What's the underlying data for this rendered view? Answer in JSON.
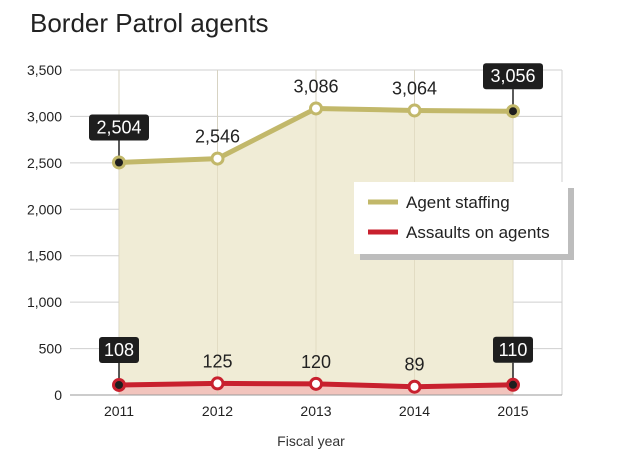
{
  "chart_data": {
    "type": "line",
    "title": "Border Patrol agents",
    "xlabel": "Fiscal year",
    "ylabel": "",
    "categories": [
      "2011",
      "2012",
      "2013",
      "2014",
      "2015"
    ],
    "ylim": [
      0,
      3500
    ],
    "yticks": [
      0,
      500,
      1000,
      1500,
      2000,
      2500,
      3000,
      3500
    ],
    "ytick_labels": [
      "0",
      "500",
      "1,000",
      "1,500",
      "2,000",
      "2,500",
      "3,000",
      "3,500"
    ],
    "grid": true,
    "legend_position": "right",
    "series": [
      {
        "name": "Agent staffing",
        "values": [
          2504,
          2546,
          3086,
          3064,
          3056
        ],
        "labels": [
          "2,504",
          "2,546",
          "3,086",
          "3,064",
          "3,056"
        ],
        "highlighted": [
          true,
          false,
          false,
          false,
          true
        ],
        "color": "#c2b86a",
        "fill": "#f0ecd6"
      },
      {
        "name": "Assaults on agents",
        "values": [
          108,
          125,
          120,
          89,
          110
        ],
        "labels": [
          "108",
          "125",
          "120",
          "89",
          "110"
        ],
        "highlighted": [
          true,
          false,
          false,
          false,
          true
        ],
        "color": "#c8202e",
        "fill": "#f2c4bd"
      }
    ]
  }
}
